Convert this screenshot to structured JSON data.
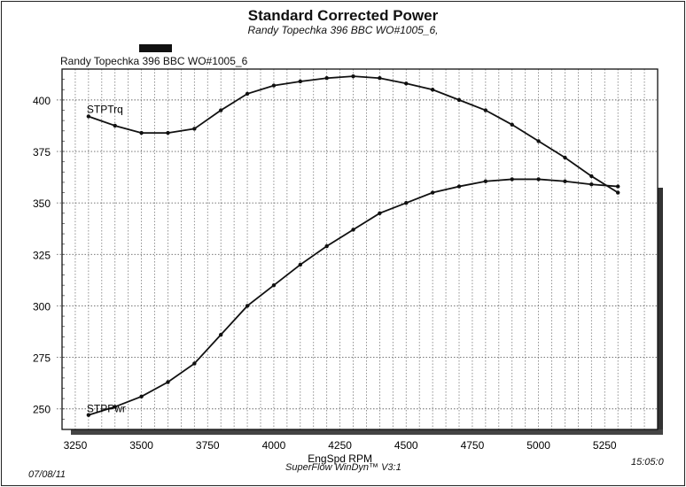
{
  "header": {
    "title": "Standard Corrected Power",
    "subtitle": "Randy Topechka 396 BBC WO#1005_6,"
  },
  "footer": {
    "date": "07/08/11",
    "software": "SuperFlow WinDyn™ V3:1",
    "time": "15:05:0"
  },
  "chart_data": {
    "type": "line",
    "title": "Standard Corrected Power",
    "plot_label": "Randy Topechka 396 BBC WO#1005_6",
    "xlabel": "EngSpd RPM",
    "ylabel": "",
    "xlim": [
      3200,
      5450
    ],
    "ylim": [
      240,
      415
    ],
    "xticks": [
      3250,
      3500,
      3750,
      4000,
      4250,
      4500,
      4750,
      5000,
      5250
    ],
    "yticks": [
      250,
      275,
      300,
      325,
      350,
      375,
      400
    ],
    "grid": true,
    "x": [
      3300,
      3400,
      3500,
      3600,
      3700,
      3800,
      3900,
      4000,
      4100,
      4200,
      4300,
      4400,
      4500,
      4600,
      4700,
      4800,
      4900,
      5000,
      5100,
      5200,
      5300
    ],
    "series": [
      {
        "name": "STPTrq",
        "values": [
          392,
          387.5,
          384,
          384,
          386,
          395,
          403,
          407,
          409,
          410.6,
          411.5,
          410.6,
          408,
          405,
          400,
          395,
          388,
          380,
          372,
          363,
          355
        ]
      },
      {
        "name": "STPPwr",
        "values": [
          247,
          251,
          256,
          263,
          272,
          286,
          300,
          310,
          320,
          329,
          337,
          345,
          350,
          355,
          358,
          360.5,
          361.5,
          361.5,
          360.5,
          359,
          358
        ]
      }
    ]
  }
}
